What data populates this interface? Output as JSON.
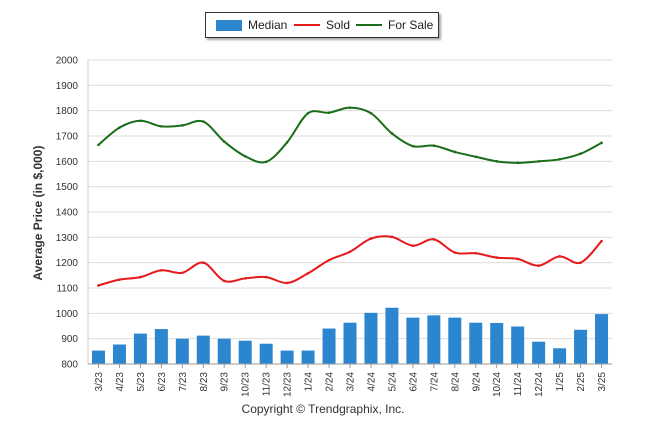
{
  "legend": {
    "items": [
      {
        "label": "Median",
        "color": "#2b86cf"
      },
      {
        "label": "Sold",
        "color": "#e41a1c"
      },
      {
        "label": "For Sale",
        "color": "#1a6e1a"
      }
    ]
  },
  "footer": {
    "copyright": "Copyright © Trendgraphix, Inc."
  },
  "chart_data": {
    "type": "bar",
    "ylabel": "Average Price (in $,000)",
    "xlabel": "",
    "ylim": [
      800,
      2000
    ],
    "yticks": [
      800,
      900,
      1000,
      1100,
      1200,
      1300,
      1400,
      1500,
      1600,
      1700,
      1800,
      1900,
      2000
    ],
    "grid": true,
    "legend_position": "top-center",
    "categories": [
      "3/23",
      "4/23",
      "5/23",
      "6/23",
      "7/23",
      "8/23",
      "9/23",
      "10/23",
      "11/23",
      "12/23",
      "1/24",
      "2/24",
      "3/24",
      "4/24",
      "5/24",
      "6/24",
      "7/24",
      "8/24",
      "9/24",
      "10/24",
      "11/24",
      "12/24",
      "1/25",
      "2/25",
      "3/25"
    ],
    "series": [
      {
        "name": "Median",
        "type": "bar",
        "color": "#2b86cf",
        "values": [
          853,
          877,
          920,
          938,
          900,
          912,
          900,
          892,
          880,
          853,
          853,
          940,
          963,
          1002,
          1022,
          983,
          992,
          983,
          963,
          962,
          948,
          888,
          862,
          935,
          997
        ]
      },
      {
        "name": "Sold",
        "type": "line",
        "color": "#e41a1c",
        "values": [
          1110,
          1133,
          1143,
          1170,
          1160,
          1200,
          1128,
          1138,
          1143,
          1120,
          1158,
          1210,
          1243,
          1295,
          1302,
          1267,
          1292,
          1240,
          1237,
          1220,
          1215,
          1188,
          1225,
          1200,
          1285
        ]
      },
      {
        "name": "For Sale",
        "type": "line",
        "color": "#1a6e1a",
        "values": [
          1665,
          1733,
          1760,
          1738,
          1742,
          1757,
          1678,
          1620,
          1598,
          1675,
          1790,
          1792,
          1812,
          1790,
          1710,
          1660,
          1662,
          1637,
          1618,
          1600,
          1594,
          1600,
          1608,
          1630,
          1673
        ]
      }
    ]
  }
}
